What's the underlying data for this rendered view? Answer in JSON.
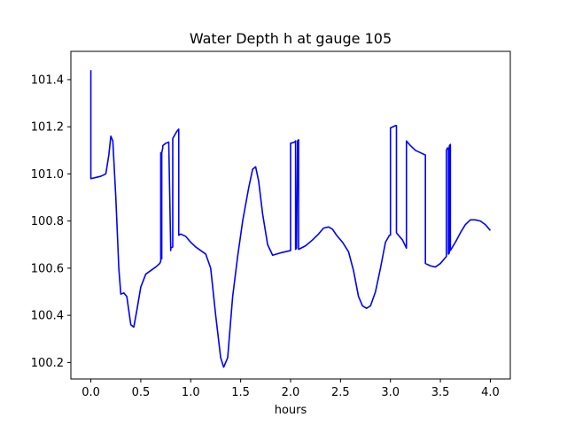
{
  "chart_data": {
    "type": "line",
    "title": "Water Depth h at gauge 105",
    "xlabel": "hours",
    "ylabel": "",
    "xlim": [
      -0.2,
      4.2
    ],
    "ylim": [
      100.13,
      101.52
    ],
    "xticks": [
      0.0,
      0.5,
      1.0,
      1.5,
      2.0,
      2.5,
      3.0,
      3.5,
      4.0
    ],
    "xtick_labels": [
      "0.0",
      "0.5",
      "1.0",
      "1.5",
      "2.0",
      "2.5",
      "3.0",
      "3.5",
      "4.0"
    ],
    "yticks": [
      100.2,
      100.4,
      100.6,
      100.8,
      101.0,
      101.2,
      101.4
    ],
    "ytick_labels": [
      "100.2",
      "100.4",
      "100.6",
      "100.8",
      "101.0",
      "101.2",
      "101.4"
    ],
    "grid": false,
    "series": [
      {
        "color": "#0000ff",
        "x": [
          0.0,
          0.0,
          0.0,
          0.05,
          0.1,
          0.15,
          0.18,
          0.2,
          0.22,
          0.25,
          0.28,
          0.3,
          0.33,
          0.36,
          0.4,
          0.43,
          0.46,
          0.5,
          0.55,
          0.6,
          0.65,
          0.69,
          0.7,
          0.7,
          0.7,
          0.71,
          0.71,
          0.72,
          0.72,
          0.75,
          0.78,
          0.8,
          0.8,
          0.82,
          0.82,
          0.86,
          0.88,
          0.88,
          0.9,
          0.95,
          1.0,
          1.05,
          1.1,
          1.15,
          1.2,
          1.25,
          1.3,
          1.33,
          1.37,
          1.42,
          1.47,
          1.52,
          1.58,
          1.62,
          1.65,
          1.68,
          1.72,
          1.77,
          1.82,
          1.9,
          2.0,
          2.0,
          2.04,
          2.05,
          2.05,
          2.06,
          2.07,
          2.08,
          2.08,
          2.15,
          2.22,
          2.28,
          2.33,
          2.38,
          2.42,
          2.46,
          2.52,
          2.58,
          2.63,
          2.68,
          2.72,
          2.76,
          2.8,
          2.85,
          2.9,
          2.95,
          2.99,
          3.0,
          3.0,
          3.05,
          3.06,
          3.06,
          3.12,
          3.16,
          3.16,
          3.2,
          3.25,
          3.3,
          3.35,
          3.35,
          3.4,
          3.45,
          3.5,
          3.54,
          3.56,
          3.56,
          3.57,
          3.58,
          3.58,
          3.59,
          3.59,
          3.6,
          3.6,
          3.65,
          3.7,
          3.75,
          3.8,
          3.85,
          3.9,
          3.95,
          4.0
        ],
        "y": [
          101.44,
          100.98,
          100.98,
          100.985,
          100.99,
          101.0,
          101.08,
          101.16,
          101.14,
          100.9,
          100.6,
          100.49,
          100.495,
          100.48,
          100.36,
          100.35,
          100.42,
          100.52,
          100.575,
          100.59,
          100.605,
          100.62,
          100.63,
          101.09,
          100.64,
          100.64,
          101.09,
          101.11,
          101.12,
          101.13,
          101.135,
          100.675,
          100.685,
          100.69,
          101.15,
          101.18,
          101.19,
          100.74,
          100.745,
          100.735,
          100.71,
          100.69,
          100.675,
          100.66,
          100.6,
          100.4,
          100.22,
          100.18,
          100.22,
          100.48,
          100.65,
          100.8,
          100.94,
          101.02,
          101.03,
          100.97,
          100.83,
          100.7,
          100.655,
          100.665,
          100.675,
          101.13,
          101.135,
          101.14,
          100.68,
          100.685,
          101.14,
          101.145,
          100.68,
          100.695,
          100.72,
          100.745,
          100.77,
          100.775,
          100.765,
          100.74,
          100.71,
          100.67,
          100.59,
          100.48,
          100.44,
          100.43,
          100.44,
          100.5,
          100.6,
          100.71,
          100.74,
          100.74,
          101.195,
          101.205,
          101.205,
          100.75,
          100.72,
          100.685,
          101.14,
          101.12,
          101.1,
          101.09,
          101.08,
          100.62,
          100.61,
          100.605,
          100.62,
          100.64,
          100.65,
          101.1,
          101.11,
          101.11,
          100.66,
          100.665,
          101.12,
          101.125,
          100.675,
          100.71,
          100.75,
          100.785,
          100.805,
          100.805,
          100.8,
          100.785,
          100.76
        ]
      }
    ]
  }
}
